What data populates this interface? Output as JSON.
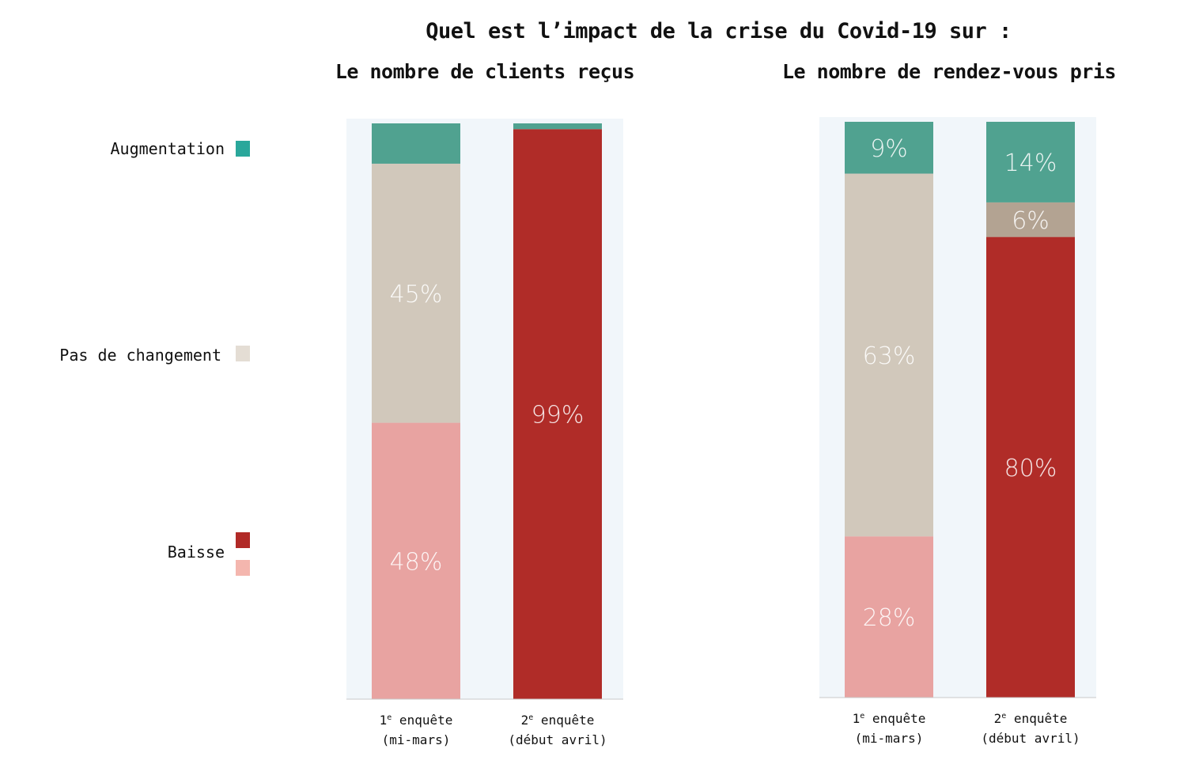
{
  "title": "Quel est l’impact de la crise du Covid-19 sur :",
  "legend": {
    "items": [
      {
        "key": "augmentation",
        "label": "Augmentation",
        "colors": [
          "#2aa79b"
        ]
      },
      {
        "key": "pas_de_changement",
        "label": "Pas de changement",
        "colors": [
          "#e4ddd4"
        ]
      },
      {
        "key": "baisse",
        "label": "Baisse",
        "colors": [
          "#b12a27",
          "#f4b6ae"
        ]
      }
    ]
  },
  "colors": {
    "augmentation": "#50a290",
    "pas_de_changement_1": "#d1c8bb",
    "pas_de_changement_2": "#b3a392",
    "baisse_1": "#e8a3a1",
    "baisse_2": "#b02c28",
    "plot_bg": "#f1f6fa"
  },
  "chart_data": [
    {
      "type": "bar",
      "stacked": true,
      "title": "Le nombre de clients reçus",
      "categories": [
        {
          "line1": "1",
          "sup": "e",
          "line1_rest": " enquête",
          "line2": "(mi-mars)"
        },
        {
          "line1": "2",
          "sup": "e",
          "line1_rest": " enquête",
          "line2": "(début avril)"
        }
      ],
      "series": [
        {
          "name": "Baisse",
          "values": [
            48,
            99
          ],
          "labels": [
            "48%",
            "99%"
          ],
          "colors": [
            "#e8a3a1",
            "#b02c28"
          ]
        },
        {
          "name": "Pas de changement",
          "values": [
            45,
            0
          ],
          "labels": [
            "45%",
            ""
          ],
          "colors": [
            "#d1c8bb",
            "#b3a392"
          ]
        },
        {
          "name": "Augmentation",
          "values": [
            7,
            1
          ],
          "labels": [
            "",
            ""
          ],
          "colors": [
            "#50a290",
            "#50a290"
          ]
        }
      ],
      "ylim": [
        0,
        100
      ]
    },
    {
      "type": "bar",
      "stacked": true,
      "title": "Le nombre de rendez-vous pris",
      "categories": [
        {
          "line1": "1",
          "sup": "e",
          "line1_rest": " enquête",
          "line2": "(mi-mars)"
        },
        {
          "line1": "2",
          "sup": "e",
          "line1_rest": " enquête",
          "line2": "(début avril)"
        }
      ],
      "series": [
        {
          "name": "Baisse",
          "values": [
            28,
            80
          ],
          "labels": [
            "28%",
            "80%"
          ],
          "colors": [
            "#e8a3a1",
            "#b02c28"
          ]
        },
        {
          "name": "Pas de changement",
          "values": [
            63,
            6
          ],
          "labels": [
            "63%",
            "6%"
          ],
          "colors": [
            "#d1c8bb",
            "#b3a392"
          ]
        },
        {
          "name": "Augmentation",
          "values": [
            9,
            14
          ],
          "labels": [
            "9%",
            "14%"
          ],
          "colors": [
            "#50a290",
            "#50a290"
          ]
        }
      ],
      "ylim": [
        0,
        100
      ]
    }
  ]
}
